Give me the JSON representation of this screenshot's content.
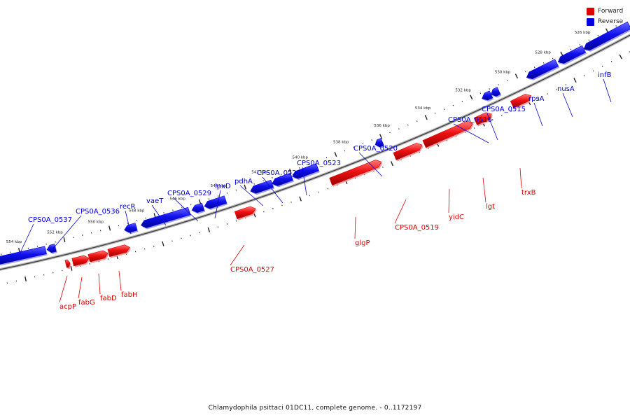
{
  "legend": {
    "forward": {
      "label": "Forward",
      "color": "#e00000"
    },
    "reverse": {
      "label": "Reverse",
      "color": "#0000e0"
    }
  },
  "caption": "Chlamydophila psittaci 01DC11, complete genome. - 0..1172197",
  "scale_labels": [
    "554 kbp",
    "552 kbp",
    "550 kbp",
    "548 kbp",
    "546 kbp",
    "544 kbp",
    "542 kbp",
    "540 kbp",
    "538 kbp",
    "536 kbp",
    "534 kbp",
    "532 kbp",
    "530 kbp",
    "528 kbp",
    "526 kbp"
  ],
  "genes": [
    {
      "name": "CPS0A_0537",
      "strand": "reverse"
    },
    {
      "name": "CPS0A_0536",
      "strand": "reverse"
    },
    {
      "name": "recR",
      "strand": "reverse"
    },
    {
      "name": "vaeT",
      "strand": "reverse"
    },
    {
      "name": "CPS0A_0529",
      "strand": "reverse"
    },
    {
      "name": "lpxD",
      "strand": "reverse"
    },
    {
      "name": "pdhA",
      "strand": "reverse"
    },
    {
      "name": "CPS0A_0524",
      "strand": "reverse"
    },
    {
      "name": "CPS0A_0523",
      "strand": "reverse"
    },
    {
      "name": "CPS0A_0520",
      "strand": "reverse"
    },
    {
      "name": "CPS0A_0516",
      "strand": "reverse"
    },
    {
      "name": "CPS0A_0515",
      "strand": "reverse"
    },
    {
      "name": "rpsA",
      "strand": "reverse"
    },
    {
      "name": "nusA",
      "strand": "reverse"
    },
    {
      "name": "infB",
      "strand": "reverse"
    },
    {
      "name": "acpP",
      "strand": "forward"
    },
    {
      "name": "fabG",
      "strand": "forward"
    },
    {
      "name": "fabD",
      "strand": "forward"
    },
    {
      "name": "fabH",
      "strand": "forward"
    },
    {
      "name": "CPS0A_0527",
      "strand": "forward"
    },
    {
      "name": "glgP",
      "strand": "forward"
    },
    {
      "name": "CPS0A_0519",
      "strand": "forward"
    },
    {
      "name": "yidC",
      "strand": "forward"
    },
    {
      "name": "lgt",
      "strand": "forward"
    },
    {
      "name": "trxB",
      "strand": "forward"
    }
  ]
}
